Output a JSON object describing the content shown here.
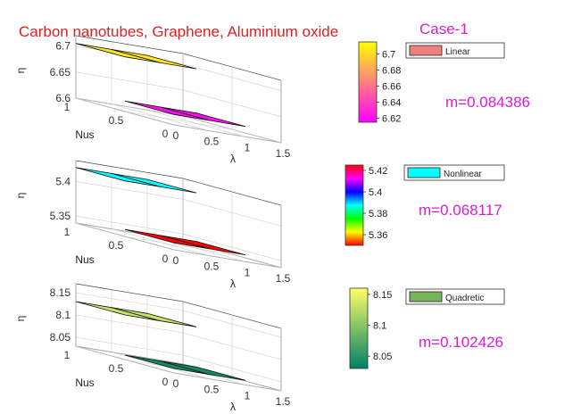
{
  "title": "Carbon nanotubes, Graphene, Aluminium oxide",
  "case_label": "Case-1",
  "colors": {
    "title": "#e02020",
    "accent": "#d81ed8",
    "axis": "#555555",
    "grid": "#cccccc",
    "tile_edge": "#111111"
  },
  "chart_data": [
    {
      "type": "surface3d",
      "name": "Linear",
      "legend": "Linear",
      "slope_label": "m=0.084386",
      "xlabel": "λ",
      "ylabel": "Nus",
      "zlabel": "η",
      "x_ticks": [
        "0",
        "0.5",
        "1",
        "1.5"
      ],
      "y_ticks": [
        "0",
        "0.5",
        "1"
      ],
      "z_ticks": [
        "6.6",
        "6.65",
        "6.7"
      ],
      "x_range": [
        0,
        1.5
      ],
      "y_range": [
        0,
        1
      ],
      "z_range": [
        6.6,
        6.72
      ],
      "colorbar_ticks": [
        "6.7",
        "6.68",
        "6.66",
        "6.64",
        "6.62"
      ],
      "colorbar_range": [
        6.615,
        6.715
      ],
      "colormap": "spring",
      "tiles": [
        {
          "i": 0,
          "j": 0,
          "value": 6.62
        },
        {
          "i": 1,
          "j": 0,
          "value": 6.62
        },
        {
          "i": 0,
          "j": 1,
          "value": 6.705
        },
        {
          "i": 1,
          "j": 1,
          "value": 6.705
        }
      ]
    },
    {
      "type": "surface3d",
      "name": "Nonlinear",
      "legend": "Nonlinear",
      "slope_label": "m=0.068117",
      "xlabel": "λ",
      "ylabel": "Nus",
      "zlabel": "η",
      "x_ticks": [
        "0",
        "0.5",
        "1",
        "1.5"
      ],
      "y_ticks": [
        "0",
        "0.5",
        "1"
      ],
      "z_ticks": [
        "5.35",
        "5.4"
      ],
      "x_range": [
        0,
        1.5
      ],
      "y_range": [
        0,
        1
      ],
      "z_range": [
        5.34,
        5.43
      ],
      "colorbar_ticks": [
        "5.42",
        "5.4",
        "5.38",
        "5.36"
      ],
      "colorbar_range": [
        5.35,
        5.425
      ],
      "colormap": "hsv",
      "tiles": [
        {
          "i": 0,
          "j": 0,
          "value": 5.35
        },
        {
          "i": 1,
          "j": 0,
          "value": 5.35
        },
        {
          "i": 0,
          "j": 1,
          "value": 5.42
        },
        {
          "i": 1,
          "j": 1,
          "value": 5.42
        }
      ]
    },
    {
      "type": "surface3d",
      "name": "Quadretic",
      "legend": "Quadretic",
      "slope_label": "m=0.102426",
      "xlabel": "λ",
      "ylabel": "Nus",
      "zlabel": "η",
      "x_ticks": [
        "0",
        "0.5",
        "1",
        "1.5"
      ],
      "y_ticks": [
        "0",
        "0.5",
        "1"
      ],
      "z_ticks": [
        "8.05",
        "8.1",
        "8.15"
      ],
      "x_range": [
        0,
        1.5
      ],
      "y_range": [
        0,
        1
      ],
      "z_range": [
        8.03,
        8.17
      ],
      "colorbar_ticks": [
        "8.15",
        "8.1",
        "8.05"
      ],
      "colorbar_range": [
        8.03,
        8.16
      ],
      "colormap": "summer",
      "tiles": [
        {
          "i": 0,
          "j": 0,
          "value": 8.04
        },
        {
          "i": 1,
          "j": 0,
          "value": 8.04
        },
        {
          "i": 0,
          "j": 1,
          "value": 8.13
        },
        {
          "i": 1,
          "j": 1,
          "value": 8.13
        }
      ]
    }
  ]
}
